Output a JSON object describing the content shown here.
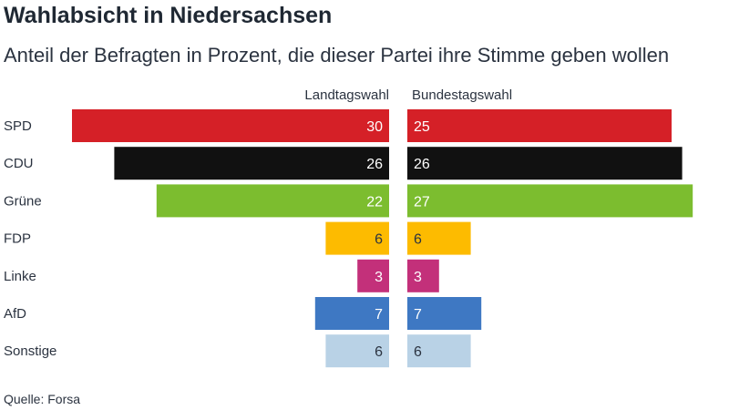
{
  "header": {
    "title": "Wahlabsicht in Niedersachsen",
    "subtitle": "Anteil der Befragten in Prozent, die dieser Partei ihre Stimme geben wollen"
  },
  "footer": {
    "source": "Quelle: Forsa"
  },
  "chart_data": {
    "type": "bar",
    "orientation": "horizontal-butterfly",
    "categories": [
      "SPD",
      "CDU",
      "Grüne",
      "FDP",
      "Linke",
      "AfD",
      "Sonstige"
    ],
    "colors": [
      "#d52027",
      "#111111",
      "#7cbd2f",
      "#fdbb00",
      "#c3307a",
      "#3e78c3",
      "#b9d2e6"
    ],
    "label_colors": [
      "#ffffff",
      "#ffffff",
      "#ffffff",
      "#2b3340",
      "#ffffff",
      "#ffffff",
      "#2b3340"
    ],
    "series": [
      {
        "name": "Landtagswahl",
        "values": [
          30,
          26,
          22,
          6,
          3,
          7,
          6
        ]
      },
      {
        "name": "Bundestagswahl",
        "values": [
          25,
          26,
          27,
          6,
          3,
          7,
          6
        ]
      }
    ],
    "xlim": [
      0,
      30
    ],
    "grid": false,
    "legend": "column headers above bars"
  }
}
